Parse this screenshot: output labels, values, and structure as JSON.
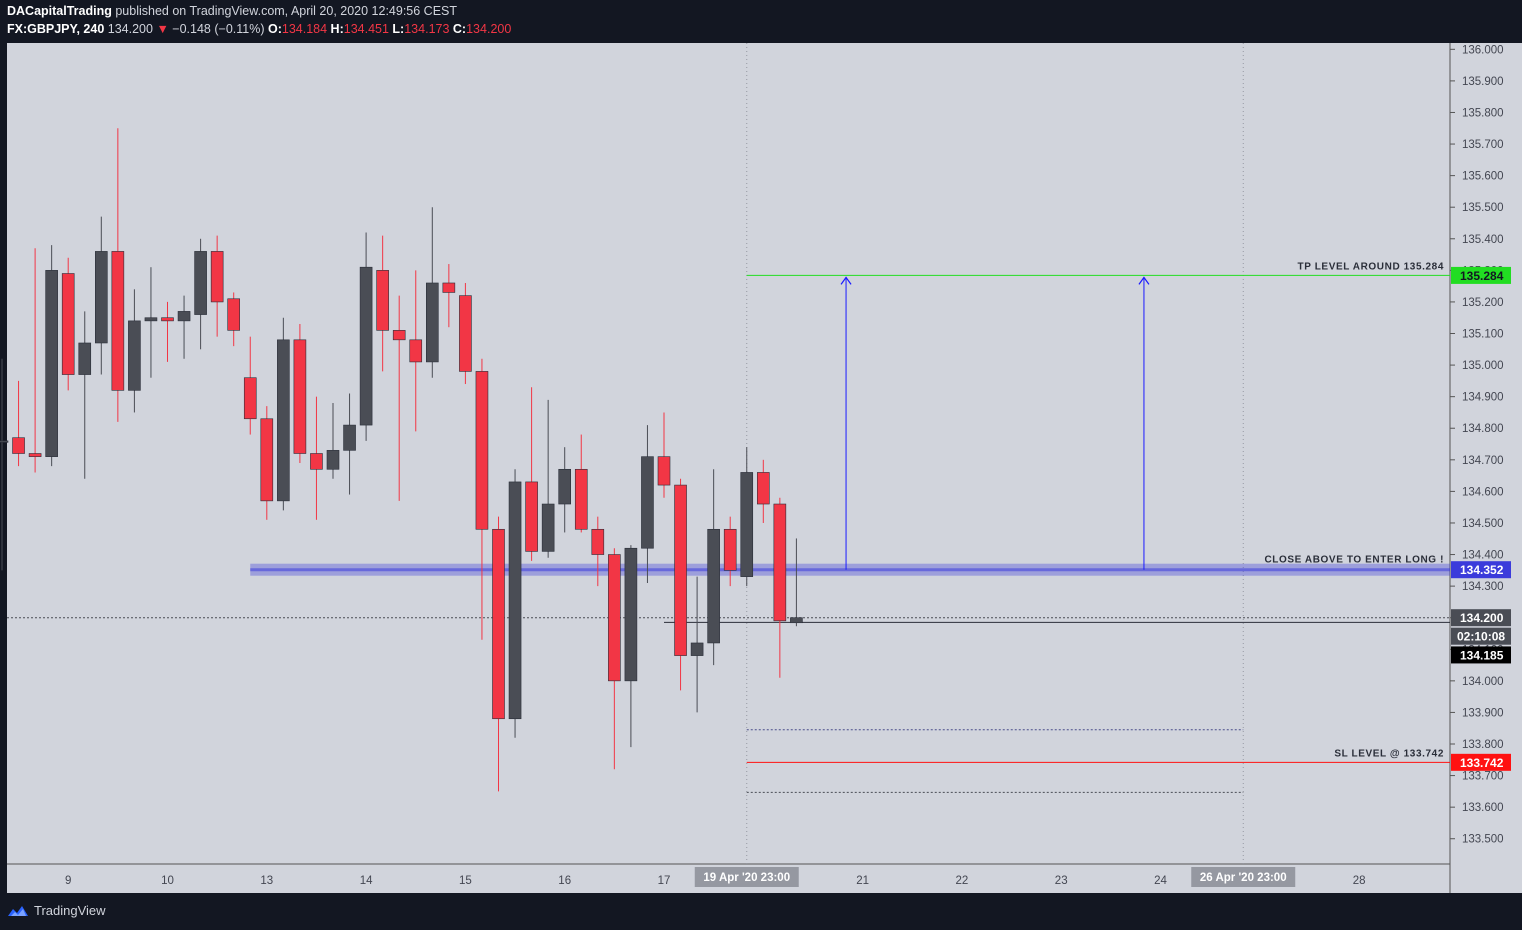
{
  "header": {
    "author": "DACapitalTrading",
    "published_text": "published on TradingView.com, April 20, 2020 12:49:56 CEST",
    "symbol": "FX:GBPJPY",
    "interval": "240",
    "last_price": "134.200",
    "change": "−0.148 (−0.11%)",
    "open_label": "O:",
    "open": "134.184",
    "high_label": "H:",
    "high": "134.451",
    "low_label": "L:",
    "low": "134.173",
    "close_label": "C:",
    "close": "134.200"
  },
  "footer": {
    "brand": "TradingView"
  },
  "colors": {
    "background": "#d1d4dc",
    "bull": "#4a4d55",
    "bear": "#f23645",
    "tp": "#22dd22",
    "sl": "#ff1111",
    "entry": "#3b3bdb",
    "arrow": "#1a1aff"
  },
  "chart_data": {
    "type": "candlestick",
    "symbol": "FX:GBPJPY",
    "interval": "240",
    "ylim": [
      133.42,
      136.02
    ],
    "y_ticks": [
      "133.500",
      "133.600",
      "133.700",
      "133.800",
      "133.900",
      "134.000",
      "134.100",
      "134.200",
      "134.300",
      "134.400",
      "134.500",
      "134.600",
      "134.700",
      "134.800",
      "134.900",
      "135.000",
      "135.100",
      "135.200",
      "135.300",
      "135.400",
      "135.500",
      "135.600",
      "135.700",
      "135.800",
      "135.900",
      "136.000"
    ],
    "x_ticks": [
      {
        "label": "9",
        "slot": 4
      },
      {
        "label": "10",
        "slot": 10
      },
      {
        "label": "13",
        "slot": 16
      },
      {
        "label": "14",
        "slot": 22
      },
      {
        "label": "15",
        "slot": 28
      },
      {
        "label": "16",
        "slot": 34
      },
      {
        "label": "17",
        "slot": 40
      },
      {
        "label": "20",
        "slot": 46
      },
      {
        "label": "21",
        "slot": 52
      },
      {
        "label": "22",
        "slot": 58
      },
      {
        "label": "23",
        "slot": 64
      },
      {
        "label": "24",
        "slot": 70
      },
      {
        "label": "27",
        "slot": 76
      },
      {
        "label": "28",
        "slot": 82
      }
    ],
    "time_markers": [
      {
        "label": "19 Apr '20",
        "time": "23:00",
        "slot": 45
      },
      {
        "label": "26 Apr '20",
        "time": "23:00",
        "slot": 75
      }
    ],
    "candles": [
      {
        "o": 134.76,
        "h": 135.02,
        "l": 134.35,
        "c": 134.76
      },
      {
        "o": 134.77,
        "h": 134.95,
        "l": 134.68,
        "c": 134.72
      },
      {
        "o": 134.72,
        "h": 135.37,
        "l": 134.66,
        "c": 134.71
      },
      {
        "o": 134.71,
        "h": 135.38,
        "l": 134.68,
        "c": 135.3
      },
      {
        "o": 135.29,
        "h": 135.34,
        "l": 134.92,
        "c": 134.97
      },
      {
        "o": 134.97,
        "h": 135.17,
        "l": 134.64,
        "c": 135.07
      },
      {
        "o": 135.07,
        "h": 135.47,
        "l": 134.97,
        "c": 135.36
      },
      {
        "o": 135.36,
        "h": 135.75,
        "l": 134.82,
        "c": 134.92
      },
      {
        "o": 134.92,
        "h": 135.24,
        "l": 134.85,
        "c": 135.14
      },
      {
        "o": 135.14,
        "h": 135.31,
        "l": 134.96,
        "c": 135.15
      },
      {
        "o": 135.15,
        "h": 135.2,
        "l": 135.01,
        "c": 135.14
      },
      {
        "o": 135.14,
        "h": 135.22,
        "l": 135.02,
        "c": 135.17
      },
      {
        "o": 135.16,
        "h": 135.4,
        "l": 135.05,
        "c": 135.36
      },
      {
        "o": 135.36,
        "h": 135.41,
        "l": 135.09,
        "c": 135.2
      },
      {
        "o": 135.21,
        "h": 135.23,
        "l": 135.06,
        "c": 135.11
      },
      {
        "o": 134.96,
        "h": 135.09,
        "l": 134.78,
        "c": 134.83
      },
      {
        "o": 134.83,
        "h": 134.87,
        "l": 134.51,
        "c": 134.57
      },
      {
        "o": 134.57,
        "h": 135.15,
        "l": 134.54,
        "c": 135.08
      },
      {
        "o": 135.08,
        "h": 135.13,
        "l": 134.69,
        "c": 134.72
      },
      {
        "o": 134.72,
        "h": 134.9,
        "l": 134.51,
        "c": 134.67
      },
      {
        "o": 134.67,
        "h": 134.88,
        "l": 134.64,
        "c": 134.73
      },
      {
        "o": 134.73,
        "h": 134.91,
        "l": 134.59,
        "c": 134.81
      },
      {
        "o": 134.81,
        "h": 135.42,
        "l": 134.76,
        "c": 135.31
      },
      {
        "o": 135.3,
        "h": 135.41,
        "l": 134.98,
        "c": 135.11
      },
      {
        "o": 135.11,
        "h": 135.22,
        "l": 134.57,
        "c": 135.08
      },
      {
        "o": 135.08,
        "h": 135.3,
        "l": 134.79,
        "c": 135.01
      },
      {
        "o": 135.01,
        "h": 135.5,
        "l": 134.96,
        "c": 135.26
      },
      {
        "o": 135.26,
        "h": 135.32,
        "l": 135.12,
        "c": 135.23
      },
      {
        "o": 135.22,
        "h": 135.26,
        "l": 134.94,
        "c": 134.98
      },
      {
        "o": 134.98,
        "h": 135.02,
        "l": 134.13,
        "c": 134.48
      },
      {
        "o": 134.48,
        "h": 134.52,
        "l": 133.65,
        "c": 133.88
      },
      {
        "o": 133.88,
        "h": 134.67,
        "l": 133.82,
        "c": 134.63
      },
      {
        "o": 134.63,
        "h": 134.93,
        "l": 134.38,
        "c": 134.41
      },
      {
        "o": 134.41,
        "h": 134.89,
        "l": 134.39,
        "c": 134.56
      },
      {
        "o": 134.56,
        "h": 134.74,
        "l": 134.47,
        "c": 134.67
      },
      {
        "o": 134.67,
        "h": 134.78,
        "l": 134.47,
        "c": 134.48
      },
      {
        "o": 134.48,
        "h": 134.52,
        "l": 134.3,
        "c": 134.4
      },
      {
        "o": 134.4,
        "h": 134.42,
        "l": 133.72,
        "c": 134.0
      },
      {
        "o": 134.0,
        "h": 134.43,
        "l": 133.79,
        "c": 134.42
      },
      {
        "o": 134.42,
        "h": 134.81,
        "l": 134.31,
        "c": 134.71
      },
      {
        "o": 134.71,
        "h": 134.85,
        "l": 134.58,
        "c": 134.62
      },
      {
        "o": 134.62,
        "h": 134.64,
        "l": 133.97,
        "c": 134.08
      },
      {
        "o": 134.08,
        "h": 134.33,
        "l": 133.9,
        "c": 134.12
      },
      {
        "o": 134.12,
        "h": 134.67,
        "l": 134.05,
        "c": 134.48
      },
      {
        "o": 134.48,
        "h": 134.52,
        "l": 134.3,
        "c": 134.35
      },
      {
        "o": 134.33,
        "h": 134.74,
        "l": 134.3,
        "c": 134.66
      },
      {
        "o": 134.66,
        "h": 134.7,
        "l": 134.5,
        "c": 134.56
      },
      {
        "o": 134.56,
        "h": 134.58,
        "l": 134.01,
        "c": 134.19
      },
      {
        "o": 134.184,
        "h": 134.451,
        "l": 134.173,
        "c": 134.2
      }
    ],
    "levels": {
      "tp": {
        "value": 135.284,
        "label": "TP LEVEL AROUND 135.284",
        "price_label": "135.284"
      },
      "entry": {
        "value": 134.352,
        "label": "CLOSE ABOVE TO ENTER LONG !",
        "price_label": "134.352"
      },
      "sl": {
        "value": 133.742,
        "label": "SL LEVEL @ 133.742",
        "price_label": "133.742"
      },
      "sl_band_upper": 133.845,
      "sl_band_lower": 133.647,
      "last_price": {
        "value": 134.2,
        "price_label": "134.200",
        "countdown": "02:10:08"
      },
      "marker": {
        "value": 134.185,
        "price_label": "134.185"
      }
    }
  }
}
